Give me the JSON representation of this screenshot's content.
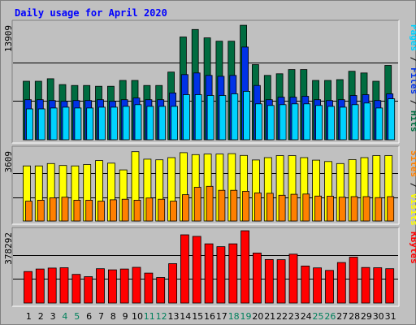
{
  "chart_data": {
    "type": "bar",
    "title": "Daily usage for April 2020",
    "categories": [
      "1",
      "2",
      "3",
      "4",
      "5",
      "6",
      "7",
      "8",
      "9",
      "10",
      "11",
      "12",
      "13",
      "14",
      "15",
      "16",
      "17",
      "18",
      "19",
      "20",
      "21",
      "22",
      "23",
      "24",
      "25",
      "26",
      "27",
      "28",
      "29",
      "30",
      "31"
    ],
    "weekend_days": [
      4,
      5,
      11,
      12,
      18,
      19,
      25,
      26
    ],
    "colors": {
      "hits": "#006c40",
      "files": "#0032e6",
      "pages": "#00d2ff",
      "visits": "#ffff00",
      "sites": "#ff8000",
      "kbytes": "#ff0000",
      "title": "#0000ff",
      "weekday_label": "#000000",
      "weekend_label": "#00805c",
      "panel_bg": "#c0c0c0"
    },
    "panels": [
      {
        "name": "hits-files-pages",
        "ymax_label": "13909",
        "ylim": [
          0,
          13909
        ],
        "legend": [
          {
            "text": "Pages",
            "color": "#00d2ff"
          },
          {
            "text": " / ",
            "color": "#000000"
          },
          {
            "text": "Files",
            "color": "#0032e6"
          },
          {
            "text": " / ",
            "color": "#000000"
          },
          {
            "text": "Hits",
            "color": "#006c40"
          }
        ],
        "series": [
          {
            "name": "Hits",
            "color": "#006c40",
            "values": [
              7000,
              7000,
              7300,
              6600,
              6500,
              6500,
              6400,
              6400,
              7100,
              7100,
              6500,
              6500,
              8100,
              12300,
              13200,
              12200,
              11800,
              11800,
              13700,
              9000,
              7700,
              7900,
              8400,
              8400,
              7100,
              7100,
              7200,
              8200,
              8000,
              7000,
              8900
            ]
          },
          {
            "name": "Files",
            "color": "#0032e6",
            "values": [
              4800,
              4800,
              4700,
              4600,
              4700,
              4700,
              4800,
              4600,
              4800,
              5000,
              4800,
              4800,
              5600,
              7800,
              8000,
              7700,
              7600,
              7700,
              11100,
              6500,
              4800,
              5100,
              5100,
              5200,
              4800,
              4700,
              4800,
              5300,
              5400,
              4700,
              5500
            ]
          },
          {
            "name": "Pages",
            "color": "#00d2ff",
            "values": [
              3700,
              3700,
              3800,
              3900,
              3800,
              3800,
              3900,
              3900,
              4000,
              4200,
              4000,
              4000,
              4000,
              5400,
              5400,
              5300,
              5300,
              5500,
              5800,
              4300,
              4100,
              4200,
              4300,
              4300,
              4100,
              4000,
              3900,
              4200,
              4400,
              3800,
              4900
            ]
          }
        ]
      },
      {
        "name": "visits-sites",
        "ymax_label": "3609",
        "ylim": [
          0,
          3609
        ],
        "legend": [
          {
            "text": "Sites",
            "color": "#ff8000"
          },
          {
            "text": " / ",
            "color": "#000000"
          },
          {
            "text": "Visits",
            "color": "#ffff00"
          }
        ],
        "series": [
          {
            "name": "Visits",
            "color": "#ffff00",
            "values": [
              2780,
              2780,
              2900,
              2800,
              2780,
              2850,
              3050,
              2920,
              2580,
              3500,
              3120,
              3090,
              3200,
              3450,
              3350,
              3380,
              3380,
              3400,
              3310,
              3080,
              3200,
              3300,
              3300,
              3200,
              3070,
              3000,
              2900,
              3100,
              3200,
              3300,
              3300
            ]
          },
          {
            "name": "Sites",
            "color": "#ff8000",
            "values": [
              1000,
              1050,
              1170,
              1200,
              1050,
              1050,
              1000,
              1070,
              1100,
              1050,
              1160,
              1100,
              1000,
              1330,
              1700,
              1750,
              1550,
              1550,
              1500,
              1420,
              1400,
              1300,
              1350,
              1360,
              1260,
              1250,
              1200,
              1230,
              1230,
              1180,
              1230
            ]
          }
        ]
      },
      {
        "name": "kbytes",
        "ymax_label": "378292",
        "ylim": [
          0,
          378292
        ],
        "legend": [
          {
            "text": "KBytes",
            "color": "#ff0000"
          }
        ],
        "series": [
          {
            "name": "KBytes",
            "color": "#ff0000",
            "values": [
              165000,
              178000,
              183000,
              185000,
              150000,
              138000,
              180000,
              174000,
              178000,
              187000,
              157000,
              134000,
              206000,
              357000,
              349000,
              310000,
              295000,
              310000,
              378292,
              262000,
              228000,
              227000,
              256000,
              194000,
              184000,
              171000,
              212000,
              240000,
              186000,
              185000,
              180000
            ]
          }
        ]
      }
    ]
  }
}
